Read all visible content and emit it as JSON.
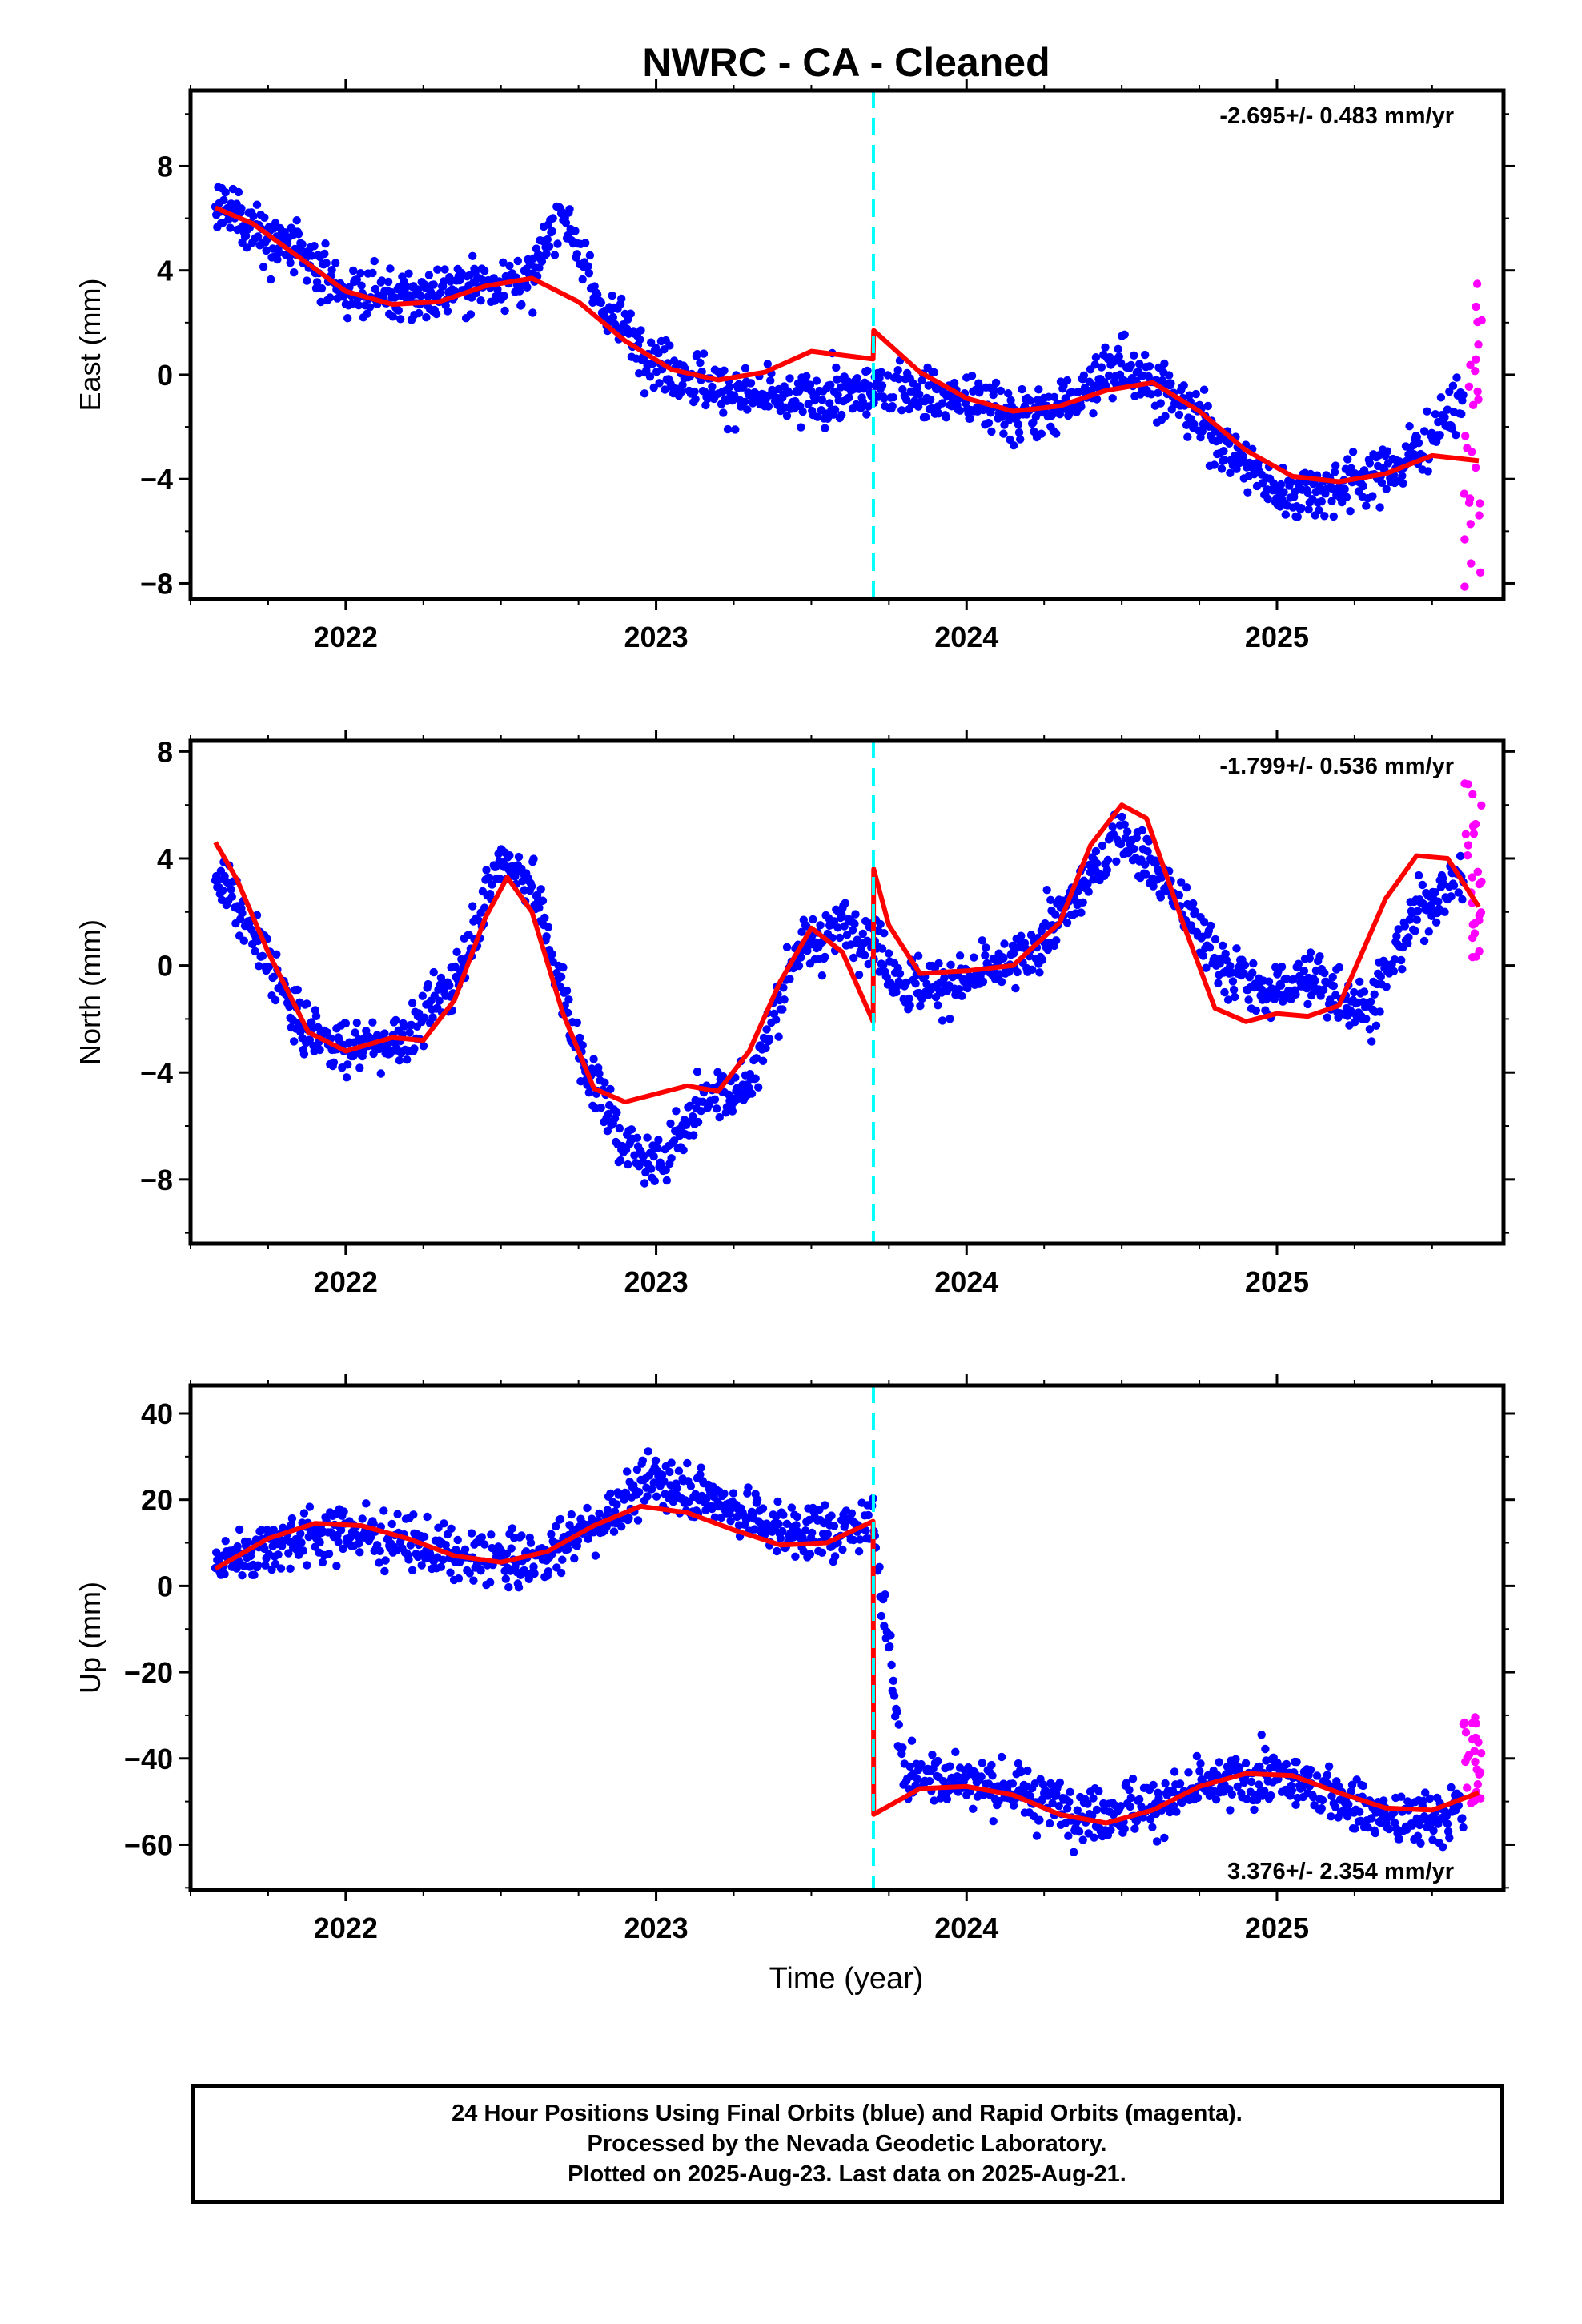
{
  "title": "NWRC  - CA - Cleaned",
  "xlabel": "Time (year)",
  "footer": {
    "line1": "24 Hour Positions Using Final Orbits (blue) and Rapid Orbits (magenta).",
    "line2": "Processed by the Nevada Geodetic Laboratory.",
    "line3": "Plotted on 2025-Aug-23. Last data on 2025-Aug-21."
  },
  "colors": {
    "final_orbits": "#0000ff",
    "rapid_orbits": "#ff00ff",
    "model": "#ff0000",
    "offset_line": "#00ffff"
  },
  "chart_data": [
    {
      "type": "scatter",
      "component": "east",
      "ylabel": "East (mm)",
      "xlim": [
        2021.5,
        2025.73
      ],
      "ylim": [
        -8.6,
        10.9
      ],
      "x_ticks": [
        2022,
        2023,
        2024,
        2025
      ],
      "x_tick_labels": [
        "2022",
        "2023",
        "2024",
        "2025"
      ],
      "y_ticks": [
        -8,
        -4,
        0,
        4,
        8
      ],
      "y_tick_labels": [
        "−8",
        "−4",
        "0",
        "4",
        "8"
      ],
      "grid": false,
      "rate_label": "-2.695+/- 0.483 mm/yr",
      "rate_label_position": "top-right",
      "offset_epoch": 2023.7,
      "series": [
        {
          "kind": "model",
          "x": [
            2021.58,
            2021.7,
            2021.85,
            2022.0,
            2022.15,
            2022.3,
            2022.45,
            2022.6,
            2022.75,
            2022.9,
            2023.05,
            2023.2,
            2023.35,
            2023.5,
            2023.699,
            2023.701,
            2023.85,
            2024.0,
            2024.15,
            2024.3,
            2024.45,
            2024.6,
            2024.75,
            2024.9,
            2025.05,
            2025.2,
            2025.35,
            2025.5,
            2025.65
          ],
          "y": [
            6.4,
            5.8,
            4.5,
            3.2,
            2.7,
            2.8,
            3.4,
            3.7,
            2.8,
            1.3,
            0.2,
            -0.2,
            0.1,
            0.9,
            0.6,
            1.7,
            0.1,
            -0.9,
            -1.4,
            -1.2,
            -0.6,
            -0.3,
            -1.4,
            -2.9,
            -3.9,
            -4.1,
            -3.8,
            -3.1,
            -3.3
          ]
        },
        {
          "kind": "final_trend",
          "x": [
            2021.58,
            2021.8,
            2022.0,
            2022.2,
            2022.4,
            2022.6,
            2022.7,
            2022.8,
            2023.0,
            2023.2,
            2023.4,
            2023.6,
            2023.7,
            2023.8,
            2024.0,
            2024.2,
            2024.4,
            2024.5,
            2024.7,
            2024.9,
            2025.0,
            2025.2,
            2025.4,
            2025.6
          ],
          "y": [
            6.5,
            5.0,
            3.2,
            2.9,
            3.5,
            3.6,
            6.5,
            3.0,
            0.5,
            -0.6,
            -1.0,
            -0.8,
            -0.6,
            -0.5,
            -1.0,
            -1.6,
            -0.6,
            0.6,
            -1.2,
            -3.4,
            -4.6,
            -4.2,
            -3.5,
            -1.0
          ]
        },
        {
          "kind": "rapid",
          "x": [
            2025.6,
            2025.66
          ],
          "y": [
            -8.2,
            3.6
          ]
        }
      ]
    },
    {
      "type": "scatter",
      "component": "north",
      "ylabel": "North (mm)",
      "xlim": [
        2021.5,
        2025.73
      ],
      "ylim": [
        -10.4,
        8.4
      ],
      "x_ticks": [
        2022,
        2023,
        2024,
        2025
      ],
      "x_tick_labels": [
        "2022",
        "2023",
        "2024",
        "2025"
      ],
      "y_ticks": [
        -8,
        -4,
        0,
        4,
        8
      ],
      "y_tick_labels": [
        "−8",
        "−4",
        "0",
        "4",
        "8"
      ],
      "grid": false,
      "rate_label": "-1.799+/- 0.536 mm/yr",
      "rate_label_position": "top-right",
      "offset_epoch": 2023.7,
      "series": [
        {
          "kind": "model",
          "x": [
            2021.58,
            2021.65,
            2021.75,
            2021.88,
            2022.0,
            2022.15,
            2022.25,
            2022.35,
            2022.45,
            2022.52,
            2022.6,
            2022.7,
            2022.8,
            2022.9,
            2023.0,
            2023.1,
            2023.2,
            2023.3,
            2023.4,
            2023.5,
            2023.6,
            2023.699,
            2023.701,
            2023.75,
            2023.85,
            2024.0,
            2024.15,
            2024.3,
            2024.4,
            2024.5,
            2024.58,
            2024.7,
            2024.8,
            2024.9,
            2025.0,
            2025.1,
            2025.2,
            2025.35,
            2025.45,
            2025.55,
            2025.65
          ],
          "y": [
            4.6,
            3.2,
            0.5,
            -2.5,
            -3.2,
            -2.7,
            -2.8,
            -1.3,
            1.8,
            3.3,
            2.0,
            -1.8,
            -4.6,
            -5.1,
            -4.8,
            -4.5,
            -4.7,
            -3.2,
            -0.6,
            1.4,
            0.5,
            -2.1,
            3.6,
            1.5,
            -0.3,
            -0.2,
            0.0,
            1.6,
            4.5,
            6.0,
            5.5,
            1.5,
            -1.6,
            -2.1,
            -1.8,
            -1.9,
            -1.5,
            2.5,
            4.1,
            4.0,
            2.2
          ]
        },
        {
          "kind": "final_trend",
          "x": [
            2021.58,
            2021.7,
            2021.85,
            2022.0,
            2022.2,
            2022.35,
            2022.5,
            2022.6,
            2022.75,
            2022.9,
            2023.0,
            2023.15,
            2023.3,
            2023.45,
            2023.6,
            2023.7,
            2023.8,
            2024.0,
            2024.2,
            2024.35,
            2024.5,
            2024.65,
            2024.8,
            2024.95,
            2025.1,
            2025.3,
            2025.45,
            2025.6
          ],
          "y": [
            3.5,
            1.2,
            -2.2,
            -3.1,
            -2.7,
            -0.5,
            4.0,
            3.2,
            -3.2,
            -6.8,
            -7.5,
            -5.0,
            -4.5,
            0.5,
            1.6,
            1.0,
            -0.8,
            -0.6,
            0.4,
            2.5,
            5.0,
            3.0,
            0.3,
            -1.0,
            -0.5,
            -1.6,
            2.0,
            3.5
          ]
        },
        {
          "kind": "rapid",
          "x": [
            2025.6,
            2025.66
          ],
          "y": [
            0.0,
            7.0
          ]
        }
      ]
    },
    {
      "type": "scatter",
      "component": "up",
      "ylabel": "Up (mm)",
      "xlabel": "Time (year)",
      "xlim": [
        2021.5,
        2025.73
      ],
      "ylim": [
        -70.5,
        46.5
      ],
      "x_ticks": [
        2022,
        2023,
        2024,
        2025
      ],
      "x_tick_labels": [
        "2022",
        "2023",
        "2024",
        "2025"
      ],
      "y_ticks": [
        -60,
        -40,
        -20,
        0,
        20,
        40
      ],
      "y_tick_labels": [
        "−60",
        "−40",
        "−20",
        "0",
        "20",
        "40"
      ],
      "grid": false,
      "rate_label": "3.376+/- 2.354 mm/yr",
      "rate_label_position": "bottom-right",
      "offset_epoch": 2023.7,
      "series": [
        {
          "kind": "model",
          "x": [
            2021.58,
            2021.75,
            2021.9,
            2022.05,
            2022.2,
            2022.35,
            2022.5,
            2022.65,
            2022.8,
            2022.95,
            2023.1,
            2023.25,
            2023.4,
            2023.55,
            2023.699,
            2023.701,
            2023.85,
            2024.0,
            2024.15,
            2024.3,
            2024.45,
            2024.6,
            2024.75,
            2024.9,
            2025.05,
            2025.2,
            2025.35,
            2025.5,
            2025.65
          ],
          "y": [
            4.0,
            11.0,
            14.5,
            14.0,
            11.0,
            7.0,
            5.5,
            8.0,
            14.0,
            18.5,
            17.0,
            13.0,
            9.5,
            10.0,
            15.0,
            -53.0,
            -47.0,
            -46.5,
            -48.5,
            -53.0,
            -55.0,
            -52.0,
            -46.5,
            -43.5,
            -44.0,
            -48.0,
            -51.5,
            -52.0,
            -48.0
          ]
        },
        {
          "kind": "final_trend",
          "x": [
            2021.58,
            2021.8,
            2022.0,
            2022.2,
            2022.4,
            2022.6,
            2022.8,
            2023.0,
            2023.2,
            2023.4,
            2023.6,
            2023.7,
            2023.8,
            2024.0,
            2024.2,
            2024.4,
            2024.6,
            2024.8,
            2025.0,
            2025.2,
            2025.4,
            2025.6
          ],
          "y": [
            5.0,
            11.0,
            13.0,
            10.0,
            6.0,
            6.0,
            14.0,
            25.0,
            20.0,
            13.0,
            12.0,
            15.0,
            -44.0,
            -45.0,
            -48.0,
            -53.0,
            -51.0,
            -46.0,
            -44.0,
            -49.0,
            -55.0,
            -52.0
          ]
        },
        {
          "kind": "rapid",
          "x": [
            2025.6,
            2025.66
          ],
          "y": [
            -52.0,
            -30.0
          ]
        }
      ]
    }
  ]
}
